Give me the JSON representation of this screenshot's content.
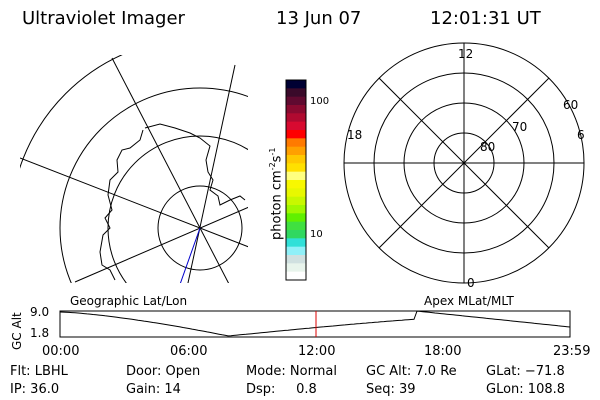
{
  "header": {
    "instrument": "Ultraviolet Imager",
    "date": "13 Jun 07",
    "time": "12:01:31 UT"
  },
  "colorbar": {
    "label": "photon cm",
    "exp1": "-2",
    "unit2": "s",
    "exp2": "-1",
    "ticks": [
      "100",
      "10"
    ],
    "colors": [
      "#000033",
      "#3a0a2a",
      "#600a30",
      "#8a0a30",
      "#b00a30",
      "#d80a30",
      "#ff0000",
      "#ff7a00",
      "#ffa000",
      "#ffc800",
      "#ffe000",
      "#ffff80",
      "#f8f800",
      "#e8f800",
      "#c8f800",
      "#a0f800",
      "#60f000",
      "#40e040",
      "#30d860",
      "#30e0d8",
      "#90f0f8",
      "#d0e0e0",
      "#e8f4ec",
      "#ffffff"
    ]
  },
  "polar": {
    "labels": {
      "top": "12",
      "left": "18",
      "right": "6",
      "bottom": "0"
    },
    "rings": [
      "60",
      "70",
      "80"
    ]
  },
  "timeline": {
    "left_title": "Geographic Lat/Lon",
    "right_title": "Apex MLat/MLT",
    "ylabel": "GC Alt",
    "yticks": [
      "9.0",
      "1.8"
    ],
    "xticks": [
      "00:00",
      "06:00",
      "12:00",
      "18:00",
      "23:59"
    ],
    "current_marker_color": "#dd0000"
  },
  "status": {
    "flt": "Flt: LBHL",
    "ip": "IP: 36.0",
    "door": "Door: Open",
    "gain": "Gain: 14",
    "mode": "Mode: Normal",
    "dsp": "Dsp:     0.8",
    "gcalt": "GC Alt: 7.0 Re",
    "seq": "Seq: 39",
    "glat": "GLat: −71.8",
    "glon": "GLon: 108.8"
  }
}
